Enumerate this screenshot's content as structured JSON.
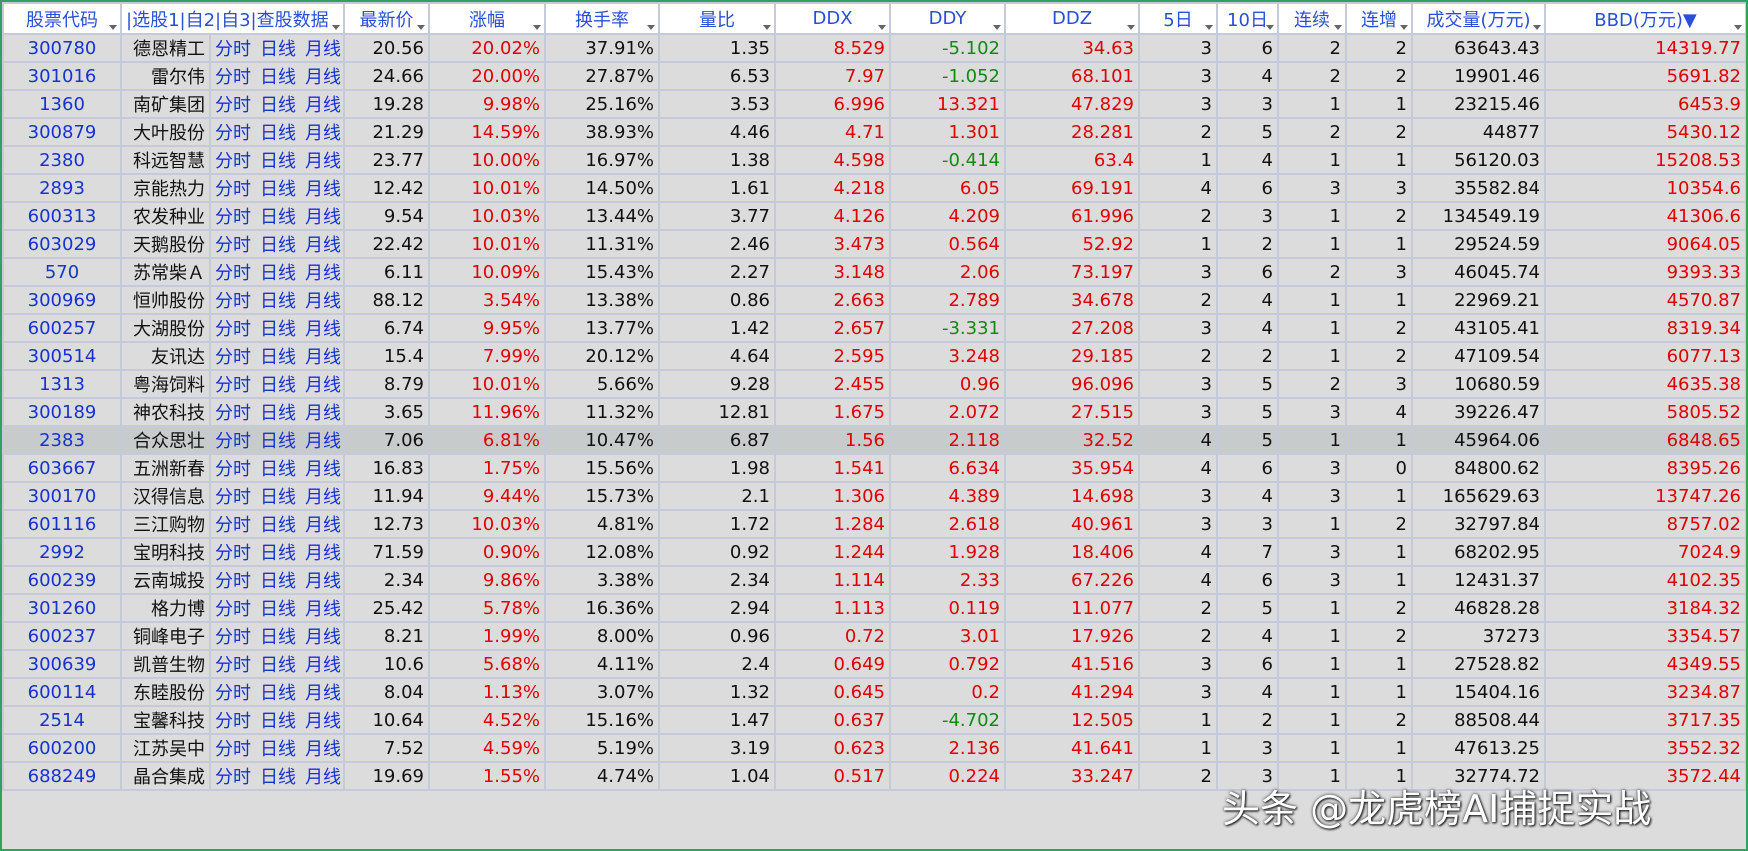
{
  "header": [
    "股票代码",
    "|选股1|自2|自3|查股数据",
    "最新价",
    "涨幅",
    "换手率",
    "量比",
    "DDX",
    "DDY",
    "DDZ",
    "5日",
    "10日",
    "连续",
    "连增",
    "成交量(万元)",
    "BBD(万元)▼"
  ],
  "rows": [
    [
      "300780",
      "德恩精工",
      "分时",
      "日线",
      "月线",
      "20.56",
      "20.02%",
      "37.91%",
      "1.35",
      "8.529",
      "-5.102",
      "34.63",
      "3",
      "6",
      "2",
      "2",
      "63643.43",
      "14319.77"
    ],
    [
      "301016",
      "雷尔伟",
      "分时",
      "日线",
      "月线",
      "24.66",
      "20.00%",
      "27.87%",
      "6.53",
      "7.97",
      "-1.052",
      "68.101",
      "3",
      "4",
      "2",
      "2",
      "19901.46",
      "5691.82"
    ],
    [
      "1360",
      "南矿集团",
      "分时",
      "日线",
      "月线",
      "19.28",
      "9.98%",
      "25.16%",
      "3.53",
      "6.996",
      "13.321",
      "47.829",
      "3",
      "3",
      "1",
      "1",
      "23215.46",
      "6453.9"
    ],
    [
      "300879",
      "大叶股份",
      "分时",
      "日线",
      "月线",
      "21.29",
      "14.59%",
      "38.93%",
      "4.46",
      "4.71",
      "1.301",
      "28.281",
      "2",
      "5",
      "2",
      "2",
      "44877",
      "5430.12"
    ],
    [
      "2380",
      "科远智慧",
      "分时",
      "日线",
      "月线",
      "23.77",
      "10.00%",
      "16.97%",
      "1.38",
      "4.598",
      "-0.414",
      "63.4",
      "1",
      "4",
      "1",
      "1",
      "56120.03",
      "15208.53"
    ],
    [
      "2893",
      "京能热力",
      "分时",
      "日线",
      "月线",
      "12.42",
      "10.01%",
      "14.50%",
      "1.61",
      "4.218",
      "6.05",
      "69.191",
      "4",
      "6",
      "3",
      "3",
      "35582.84",
      "10354.6"
    ],
    [
      "600313",
      "农发种业",
      "分时",
      "日线",
      "月线",
      "9.54",
      "10.03%",
      "13.44%",
      "3.77",
      "4.126",
      "4.209",
      "61.996",
      "2",
      "3",
      "1",
      "2",
      "134549.19",
      "41306.6"
    ],
    [
      "603029",
      "天鹅股份",
      "分时",
      "日线",
      "月线",
      "22.42",
      "10.01%",
      "11.31%",
      "2.46",
      "3.473",
      "0.564",
      "52.92",
      "1",
      "2",
      "1",
      "1",
      "29524.59",
      "9064.05"
    ],
    [
      "570",
      "苏常柴Ａ",
      "分时",
      "日线",
      "月线",
      "6.11",
      "10.09%",
      "15.43%",
      "2.27",
      "3.148",
      "2.06",
      "73.197",
      "3",
      "6",
      "2",
      "3",
      "46045.74",
      "9393.33"
    ],
    [
      "300969",
      "恒帅股份",
      "分时",
      "日线",
      "月线",
      "88.12",
      "3.54%",
      "13.38%",
      "0.86",
      "2.663",
      "2.789",
      "34.678",
      "2",
      "4",
      "1",
      "1",
      "22969.21",
      "4570.87"
    ],
    [
      "600257",
      "大湖股份",
      "分时",
      "日线",
      "月线",
      "6.74",
      "9.95%",
      "13.77%",
      "1.42",
      "2.657",
      "-3.331",
      "27.208",
      "3",
      "4",
      "1",
      "2",
      "43105.41",
      "8319.34"
    ],
    [
      "300514",
      "友讯达",
      "分时",
      "日线",
      "月线",
      "15.4",
      "7.99%",
      "20.12%",
      "4.64",
      "2.595",
      "3.248",
      "29.185",
      "2",
      "2",
      "1",
      "2",
      "47109.54",
      "6077.13"
    ],
    [
      "1313",
      "粤海饲料",
      "分时",
      "日线",
      "月线",
      "8.79",
      "10.01%",
      "5.66%",
      "9.28",
      "2.455",
      "0.96",
      "96.096",
      "3",
      "5",
      "2",
      "3",
      "10680.59",
      "4635.38"
    ],
    [
      "300189",
      "神农科技",
      "分时",
      "日线",
      "月线",
      "3.65",
      "11.96%",
      "11.32%",
      "12.81",
      "1.675",
      "2.072",
      "27.515",
      "3",
      "5",
      "3",
      "4",
      "39226.47",
      "5805.52"
    ],
    [
      "2383",
      "合众思壮",
      "分时",
      "日线",
      "月线",
      "7.06",
      "6.81%",
      "10.47%",
      "6.87",
      "1.56",
      "2.118",
      "32.52",
      "4",
      "5",
      "1",
      "1",
      "45964.06",
      "6848.65"
    ],
    [
      "603667",
      "五洲新春",
      "分时",
      "日线",
      "月线",
      "16.83",
      "1.75%",
      "15.56%",
      "1.98",
      "1.541",
      "6.634",
      "35.954",
      "4",
      "6",
      "3",
      "0",
      "84800.62",
      "8395.26"
    ],
    [
      "300170",
      "汉得信息",
      "分时",
      "日线",
      "月线",
      "11.94",
      "9.44%",
      "15.73%",
      "2.1",
      "1.306",
      "4.389",
      "14.698",
      "3",
      "4",
      "3",
      "1",
      "165629.63",
      "13747.26"
    ],
    [
      "601116",
      "三江购物",
      "分时",
      "日线",
      "月线",
      "12.73",
      "10.03%",
      "4.81%",
      "1.72",
      "1.284",
      "2.618",
      "40.961",
      "3",
      "3",
      "1",
      "2",
      "32797.84",
      "8757.02"
    ],
    [
      "2992",
      "宝明科技",
      "分时",
      "日线",
      "月线",
      "71.59",
      "0.90%",
      "12.08%",
      "0.92",
      "1.244",
      "1.928",
      "18.406",
      "4",
      "7",
      "3",
      "1",
      "68202.95",
      "7024.9"
    ],
    [
      "600239",
      "云南城投",
      "分时",
      "日线",
      "月线",
      "2.34",
      "9.86%",
      "3.38%",
      "2.34",
      "1.114",
      "2.33",
      "67.226",
      "4",
      "6",
      "3",
      "1",
      "12431.37",
      "4102.35"
    ],
    [
      "301260",
      "格力博",
      "分时",
      "日线",
      "月线",
      "25.42",
      "5.78%",
      "16.36%",
      "2.94",
      "1.113",
      "0.119",
      "11.077",
      "2",
      "5",
      "1",
      "2",
      "46828.28",
      "3184.32"
    ],
    [
      "600237",
      "铜峰电子",
      "分时",
      "日线",
      "月线",
      "8.21",
      "1.99%",
      "8.00%",
      "0.96",
      "0.72",
      "3.01",
      "17.926",
      "2",
      "4",
      "1",
      "2",
      "37273",
      "3354.57"
    ],
    [
      "300639",
      "凯普生物",
      "分时",
      "日线",
      "月线",
      "10.6",
      "5.68%",
      "4.11%",
      "2.4",
      "0.649",
      "0.792",
      "41.516",
      "3",
      "6",
      "1",
      "1",
      "27528.82",
      "4349.55"
    ],
    [
      "600114",
      "东睦股份",
      "分时",
      "日线",
      "月线",
      "8.04",
      "1.13%",
      "3.07%",
      "1.32",
      "0.645",
      "0.2",
      "41.294",
      "3",
      "4",
      "1",
      "1",
      "15404.16",
      "3234.87"
    ],
    [
      "2514",
      "宝馨科技",
      "分时",
      "日线",
      "月线",
      "10.64",
      "4.52%",
      "15.16%",
      "1.47",
      "0.637",
      "-4.702",
      "12.505",
      "1",
      "2",
      "1",
      "2",
      "88508.44",
      "3717.35"
    ],
    [
      "600200",
      "江苏吴中",
      "分时",
      "日线",
      "月线",
      "7.52",
      "4.59%",
      "5.19%",
      "3.19",
      "0.623",
      "2.136",
      "41.641",
      "1",
      "3",
      "1",
      "1",
      "47613.25",
      "3552.32"
    ],
    [
      "688249",
      "晶合集成",
      "分时",
      "日线",
      "月线",
      "19.69",
      "1.55%",
      "4.74%",
      "1.04",
      "0.517",
      "0.224",
      "33.247",
      "2",
      "3",
      "1",
      "1",
      "32774.72",
      "3572.44"
    ]
  ],
  "watermark": "头条 @龙虎榜AI捕捉实战"
}
